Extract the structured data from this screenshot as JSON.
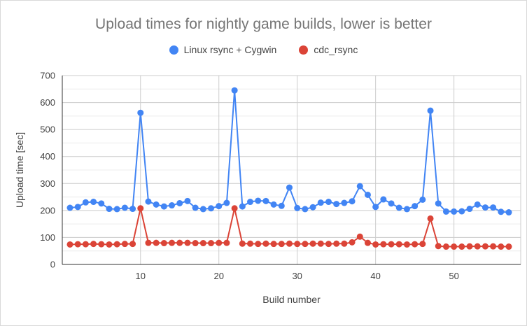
{
  "window": {
    "background_color": "#ffffff",
    "border_color": "#d9d9d9"
  },
  "chart_data": {
    "type": "line",
    "title": "Upload times for nightly game builds, lower is better",
    "xlabel": "Build number",
    "ylabel": "Upload time [sec]",
    "legend_position": "top",
    "grid": {
      "major_color": "#cccccc",
      "minor_color": "#ececec",
      "axis_color": "#333333",
      "minor_step": 50
    },
    "text_colors": {
      "title": "#757575",
      "axis": "#424242",
      "legend": "#424242"
    },
    "ylim": [
      0,
      700
    ],
    "yticks": [
      0,
      100,
      200,
      300,
      400,
      500,
      600,
      700
    ],
    "xticks": [
      10,
      20,
      30,
      40,
      50
    ],
    "x": [
      1,
      2,
      3,
      4,
      5,
      6,
      7,
      8,
      9,
      10,
      11,
      12,
      13,
      14,
      15,
      16,
      17,
      18,
      19,
      20,
      21,
      22,
      23,
      24,
      25,
      26,
      27,
      28,
      29,
      30,
      31,
      32,
      33,
      34,
      35,
      36,
      37,
      38,
      39,
      40,
      41,
      42,
      43,
      44,
      45,
      46,
      47,
      48,
      49,
      50,
      51,
      52,
      53,
      54,
      55,
      56,
      57
    ],
    "series": [
      {
        "name": "Linux rsync + Cygwin",
        "color": "#4285f4",
        "values": [
          210,
          213,
          230,
          232,
          226,
          206,
          205,
          210,
          206,
          562,
          233,
          222,
          215,
          219,
          227,
          235,
          210,
          205,
          208,
          216,
          228,
          645,
          215,
          232,
          236,
          235,
          222,
          217,
          285,
          209,
          205,
          212,
          229,
          232,
          224,
          228,
          234,
          290,
          258,
          213,
          241,
          226,
          210,
          205,
          216,
          240,
          570,
          226,
          196,
          196,
          197,
          206,
          222,
          211,
          211,
          195,
          193
        ]
      },
      {
        "name": "cdc_rsync",
        "color": "#db4437",
        "values": [
          74,
          75,
          75,
          76,
          75,
          74,
          75,
          76,
          76,
          208,
          80,
          80,
          79,
          80,
          80,
          80,
          79,
          79,
          79,
          80,
          80,
          208,
          77,
          77,
          76,
          77,
          76,
          76,
          77,
          76,
          76,
          77,
          77,
          76,
          77,
          77,
          82,
          103,
          80,
          74,
          75,
          75,
          75,
          74,
          75,
          76,
          170,
          68,
          66,
          66,
          66,
          67,
          67,
          67,
          67,
          66,
          66
        ]
      }
    ]
  }
}
